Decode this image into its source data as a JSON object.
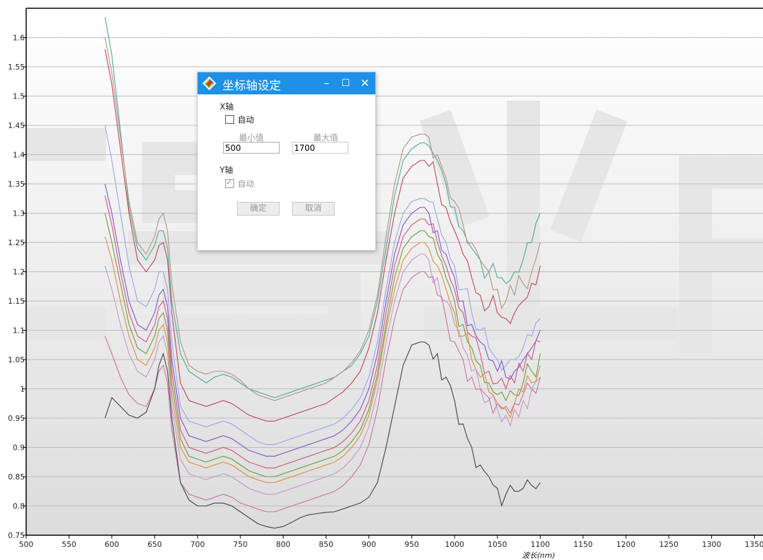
{
  "dialog": {
    "title": "坐标轴设定",
    "minimize": "–",
    "maximize": "☐",
    "close": "✕",
    "x_axis_label": "X轴",
    "x_auto_label": "自动",
    "x_auto_checked": false,
    "min_label": "最小值",
    "max_label": "最大值",
    "min_value": "500",
    "max_value": "1700",
    "y_axis_label": "Y轴",
    "y_auto_label": "自动",
    "y_auto_checked": true,
    "ok_label": "确定",
    "cancel_label": "取消"
  },
  "colors": {
    "dialog_titlebar": "#1e90e6",
    "gridline": "#bdbdbd",
    "watermark": "#e8e8e8"
  },
  "chart_data": {
    "type": "line",
    "xlabel": "波长(nm)",
    "ylabel": "",
    "xlim": [
      500,
      1360
    ],
    "ylim": [
      0.75,
      1.65
    ],
    "xticks": [
      500,
      550,
      600,
      650,
      700,
      750,
      800,
      850,
      900,
      950,
      1000,
      1050,
      1100,
      1150,
      1200,
      1250,
      1300,
      1350
    ],
    "yticks": [
      "0.75",
      "0.8",
      "0.85",
      "0.9",
      "0.95",
      "1",
      "1.05",
      "1.1",
      "1.15",
      "1.2",
      "1.25",
      "1.3",
      "1.35",
      "1.4",
      "1.45",
      "1.5",
      "1.55",
      "1.6"
    ],
    "grid": "horizontal",
    "x": [
      592,
      600,
      610,
      620,
      630,
      640,
      650,
      655,
      660,
      665,
      670,
      680,
      690,
      700,
      710,
      720,
      730,
      740,
      750,
      760,
      770,
      780,
      790,
      800,
      810,
      820,
      830,
      840,
      850,
      860,
      870,
      880,
      890,
      900,
      910,
      920,
      930,
      940,
      950,
      960,
      965,
      970,
      980,
      990,
      1000,
      1010,
      1020,
      1030,
      1040,
      1050,
      1060,
      1070,
      1080,
      1090,
      1100
    ],
    "series": [
      {
        "color": "#4aa898",
        "values": [
          1.635,
          1.57,
          1.44,
          1.31,
          1.24,
          1.22,
          1.245,
          1.27,
          1.27,
          1.24,
          1.15,
          1.06,
          1.03,
          1.02,
          1.01,
          1.02,
          1.025,
          1.02,
          1.01,
          1.0,
          0.995,
          0.99,
          0.985,
          0.99,
          0.995,
          1.0,
          1.005,
          1.01,
          1.015,
          1.02,
          1.03,
          1.04,
          1.06,
          1.09,
          1.15,
          1.24,
          1.33,
          1.39,
          1.41,
          1.42,
          1.42,
          1.415,
          1.39,
          1.35,
          1.31,
          1.27,
          1.24,
          1.22,
          1.2,
          1.19,
          1.18,
          1.2,
          1.22,
          1.25,
          1.3
        ]
      },
      {
        "color": "#b0957a",
        "values": [
          1.6,
          1.54,
          1.43,
          1.32,
          1.25,
          1.23,
          1.26,
          1.29,
          1.3,
          1.27,
          1.18,
          1.08,
          1.04,
          1.03,
          1.025,
          1.03,
          1.03,
          1.025,
          1.015,
          1.0,
          0.99,
          0.985,
          0.98,
          0.985,
          0.99,
          0.995,
          1.0,
          1.005,
          1.01,
          1.02,
          1.03,
          1.045,
          1.065,
          1.1,
          1.16,
          1.26,
          1.35,
          1.41,
          1.43,
          1.435,
          1.435,
          1.43,
          1.4,
          1.36,
          1.32,
          1.28,
          1.25,
          1.22,
          1.2,
          1.17,
          1.15,
          1.16,
          1.18,
          1.2,
          1.25
        ]
      },
      {
        "color": "#c0405a",
        "values": [
          1.58,
          1.52,
          1.41,
          1.3,
          1.22,
          1.2,
          1.22,
          1.245,
          1.25,
          1.22,
          1.13,
          1.01,
          0.98,
          0.975,
          0.97,
          0.975,
          0.98,
          0.975,
          0.965,
          0.955,
          0.95,
          0.945,
          0.945,
          0.95,
          0.955,
          0.96,
          0.965,
          0.97,
          0.975,
          0.985,
          0.995,
          1.01,
          1.03,
          1.07,
          1.13,
          1.22,
          1.3,
          1.36,
          1.38,
          1.39,
          1.39,
          1.38,
          1.35,
          1.31,
          1.27,
          1.23,
          1.19,
          1.16,
          1.14,
          1.13,
          1.12,
          1.13,
          1.15,
          1.18,
          1.21
        ]
      },
      {
        "color": "#9aa2f0",
        "values": [
          1.45,
          1.39,
          1.3,
          1.21,
          1.15,
          1.14,
          1.17,
          1.2,
          1.2,
          1.17,
          1.08,
          0.97,
          0.945,
          0.94,
          0.935,
          0.94,
          0.945,
          0.94,
          0.93,
          0.92,
          0.91,
          0.905,
          0.905,
          0.91,
          0.915,
          0.92,
          0.925,
          0.93,
          0.935,
          0.94,
          0.95,
          0.965,
          0.985,
          1.02,
          1.08,
          1.17,
          1.25,
          1.3,
          1.32,
          1.325,
          1.325,
          1.32,
          1.29,
          1.25,
          1.21,
          1.17,
          1.13,
          1.1,
          1.07,
          1.05,
          1.04,
          1.05,
          1.07,
          1.09,
          1.12
        ]
      },
      {
        "color": "#7c52c8",
        "values": [
          1.35,
          1.3,
          1.22,
          1.15,
          1.11,
          1.1,
          1.13,
          1.16,
          1.17,
          1.14,
          1.05,
          0.95,
          0.92,
          0.915,
          0.91,
          0.915,
          0.92,
          0.915,
          0.905,
          0.895,
          0.89,
          0.885,
          0.885,
          0.89,
          0.895,
          0.9,
          0.905,
          0.91,
          0.915,
          0.92,
          0.93,
          0.945,
          0.965,
          1.0,
          1.06,
          1.15,
          1.23,
          1.28,
          1.3,
          1.31,
          1.31,
          1.3,
          1.27,
          1.23,
          1.19,
          1.15,
          1.11,
          1.08,
          1.05,
          1.03,
          1.02,
          1.03,
          1.05,
          1.07,
          1.1
        ]
      },
      {
        "color": "#d05080",
        "values": [
          1.33,
          1.28,
          1.2,
          1.13,
          1.09,
          1.08,
          1.11,
          1.14,
          1.15,
          1.12,
          1.03,
          0.93,
          0.9,
          0.895,
          0.89,
          0.895,
          0.9,
          0.895,
          0.885,
          0.875,
          0.87,
          0.865,
          0.865,
          0.87,
          0.875,
          0.88,
          0.885,
          0.89,
          0.895,
          0.9,
          0.91,
          0.925,
          0.945,
          0.98,
          1.04,
          1.13,
          1.21,
          1.26,
          1.28,
          1.29,
          1.29,
          1.28,
          1.25,
          1.21,
          1.17,
          1.13,
          1.09,
          1.06,
          1.03,
          1.01,
          1.0,
          1.01,
          1.03,
          1.05,
          1.08
        ]
      },
      {
        "color": "#6a9a3a",
        "values": [
          1.3,
          1.25,
          1.18,
          1.11,
          1.07,
          1.06,
          1.09,
          1.12,
          1.13,
          1.1,
          1.01,
          0.915,
          0.885,
          0.88,
          0.875,
          0.88,
          0.885,
          0.88,
          0.87,
          0.86,
          0.855,
          0.85,
          0.85,
          0.855,
          0.86,
          0.865,
          0.87,
          0.875,
          0.88,
          0.885,
          0.895,
          0.91,
          0.93,
          0.965,
          1.025,
          1.11,
          1.19,
          1.24,
          1.26,
          1.27,
          1.27,
          1.26,
          1.23,
          1.19,
          1.15,
          1.11,
          1.07,
          1.04,
          1.01,
          0.99,
          0.98,
          0.99,
          1.01,
          1.03,
          1.06
        ]
      },
      {
        "color": "#e08a3a",
        "values": [
          1.26,
          1.22,
          1.15,
          1.09,
          1.05,
          1.04,
          1.07,
          1.1,
          1.11,
          1.08,
          0.99,
          0.9,
          0.875,
          0.87,
          0.865,
          0.87,
          0.875,
          0.87,
          0.86,
          0.85,
          0.845,
          0.84,
          0.84,
          0.845,
          0.85,
          0.855,
          0.86,
          0.865,
          0.87,
          0.875,
          0.885,
          0.9,
          0.92,
          0.955,
          1.015,
          1.1,
          1.17,
          1.22,
          1.24,
          1.25,
          1.25,
          1.24,
          1.21,
          1.17,
          1.13,
          1.09,
          1.05,
          1.02,
          0.995,
          0.975,
          0.965,
          0.975,
          0.995,
          1.01,
          1.04
        ]
      },
      {
        "color": "#c098c8",
        "values": [
          1.21,
          1.17,
          1.11,
          1.06,
          1.03,
          1.02,
          1.05,
          1.08,
          1.09,
          1.06,
          0.97,
          0.88,
          0.855,
          0.85,
          0.845,
          0.85,
          0.855,
          0.85,
          0.84,
          0.83,
          0.825,
          0.82,
          0.82,
          0.825,
          0.83,
          0.835,
          0.84,
          0.845,
          0.85,
          0.855,
          0.865,
          0.88,
          0.9,
          0.935,
          0.995,
          1.08,
          1.15,
          1.2,
          1.22,
          1.23,
          1.23,
          1.22,
          1.19,
          1.15,
          1.11,
          1.07,
          1.03,
          1.0,
          0.98,
          0.965,
          0.955,
          0.965,
          0.98,
          1.0,
          1.02
        ]
      },
      {
        "color": "#cc6f9f",
        "values": [
          1.09,
          1.06,
          1.02,
          0.99,
          0.975,
          0.97,
          1.0,
          1.03,
          1.04,
          1.01,
          0.93,
          0.84,
          0.82,
          0.815,
          0.81,
          0.815,
          0.82,
          0.815,
          0.805,
          0.8,
          0.795,
          0.79,
          0.79,
          0.795,
          0.8,
          0.805,
          0.81,
          0.815,
          0.82,
          0.825,
          0.835,
          0.85,
          0.87,
          0.905,
          0.965,
          1.05,
          1.12,
          1.17,
          1.19,
          1.2,
          1.2,
          1.19,
          1.16,
          1.12,
          1.08,
          1.05,
          1.02,
          1.0,
          0.985,
          0.975,
          0.97,
          0.975,
          0.99,
          1.0,
          1.02
        ]
      },
      {
        "color": "#404040",
        "values": [
          0.95,
          0.985,
          0.97,
          0.955,
          0.95,
          0.96,
          1.0,
          1.04,
          1.06,
          1.03,
          0.95,
          0.84,
          0.81,
          0.8,
          0.8,
          0.805,
          0.805,
          0.8,
          0.79,
          0.78,
          0.77,
          0.765,
          0.762,
          0.765,
          0.772,
          0.78,
          0.785,
          0.787,
          0.789,
          0.79,
          0.795,
          0.8,
          0.805,
          0.815,
          0.84,
          0.9,
          0.97,
          1.04,
          1.075,
          1.08,
          1.08,
          1.075,
          1.06,
          1.02,
          0.98,
          0.94,
          0.9,
          0.87,
          0.85,
          0.83,
          0.82,
          0.825,
          0.83,
          0.835,
          0.84
        ]
      }
    ]
  }
}
